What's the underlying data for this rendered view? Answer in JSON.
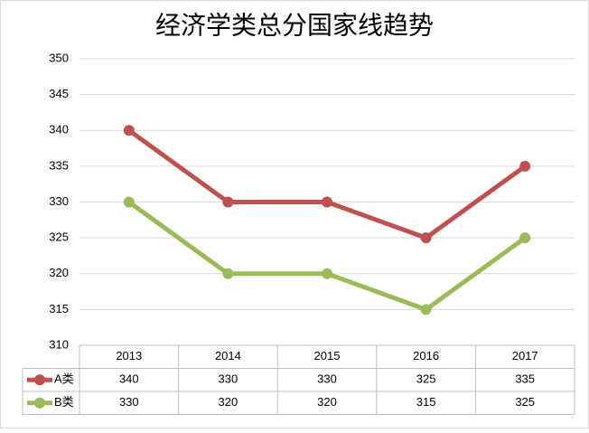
{
  "chart_data": {
    "type": "line",
    "title": "经济学类总分国家线趋势",
    "categories": [
      "2013",
      "2014",
      "2015",
      "2016",
      "2017"
    ],
    "series": [
      {
        "name": "A类",
        "color": "#c0504d",
        "values": [
          340,
          330,
          330,
          325,
          335
        ]
      },
      {
        "name": "B类",
        "color": "#9bbb59",
        "values": [
          330,
          320,
          320,
          315,
          325
        ]
      }
    ],
    "ylim": [
      310,
      350
    ],
    "yticks": [
      310,
      315,
      320,
      325,
      330,
      335,
      340,
      345,
      350
    ],
    "grid": true,
    "data_table": true
  }
}
